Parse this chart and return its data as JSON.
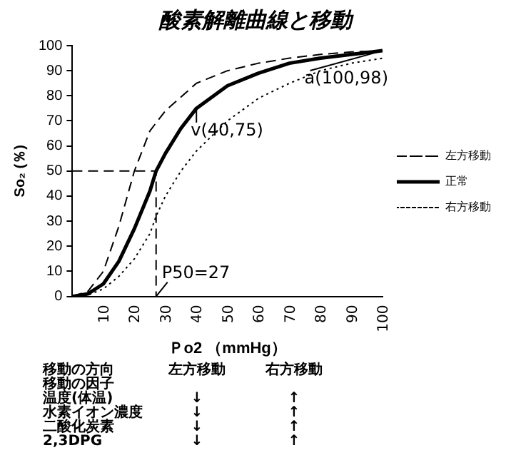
{
  "chart_data": {
    "type": "line",
    "title": "酸素解離曲線と移動",
    "xlabel": "Ｐo2 （mmHg）",
    "ylabel": "So₂ (％)",
    "xlim": [
      0,
      100
    ],
    "xticks": [
      10,
      20,
      30,
      40,
      50,
      60,
      70,
      80,
      90,
      100
    ],
    "ylim": [
      0,
      100
    ],
    "yticks": [
      0,
      10,
      20,
      30,
      40,
      50,
      60,
      70,
      80,
      90,
      100
    ],
    "grid": false,
    "legend": "right",
    "marker": "none",
    "series": [
      {
        "name": "左方移動",
        "color": "#000000",
        "line_style": "dashed",
        "x": [
          0,
          5,
          10,
          15,
          20,
          25,
          30,
          40,
          50,
          60,
          70,
          80,
          90,
          100
        ],
        "values": [
          0,
          2,
          10,
          28,
          50,
          66,
          74,
          85,
          90,
          93,
          95,
          96.5,
          97.5,
          98
        ]
      },
      {
        "name": "正常",
        "color": "#000000",
        "line_style": "solid",
        "x": [
          0,
          5,
          10,
          15,
          20,
          25,
          27,
          30,
          35,
          40,
          50,
          60,
          70,
          80,
          90,
          100
        ],
        "values": [
          0,
          1,
          5,
          14,
          27,
          42,
          50,
          57,
          67,
          75,
          84,
          89,
          93,
          95,
          96.5,
          98
        ]
      },
      {
        "name": "右方移動",
        "color": "#000000",
        "line_style": "dotted",
        "x": [
          0,
          5,
          10,
          15,
          20,
          25,
          27,
          30,
          35,
          40,
          45,
          50,
          60,
          70,
          80,
          90,
          100
        ],
        "values": [
          0,
          0.5,
          3,
          8,
          15,
          25,
          32,
          40,
          50,
          58,
          64,
          70,
          79,
          85,
          90,
          93,
          95
        ]
      },
      {
        "color": "#000000",
        "line_style": "dashed",
        "x": [
          0,
          27,
          27
        ],
        "values": [
          50,
          50,
          0
        ]
      }
    ],
    "annotations": [
      {
        "text": "v(40,75)",
        "x": 40,
        "y": 75
      },
      {
        "text": "a(100,98)",
        "x": 100,
        "y": 98
      },
      {
        "text": "P50=27",
        "x": 27,
        "y": 0
      },
      "移動の方向\t左方移動\t右方移動",
      "移動の因子",
      "温度(体温)\t↓\t↑",
      "水素イオン濃度\t↓\t↑",
      "二酸化炭素\t↓\t↑",
      "2,3DPG\t↓\t↑"
    ]
  }
}
